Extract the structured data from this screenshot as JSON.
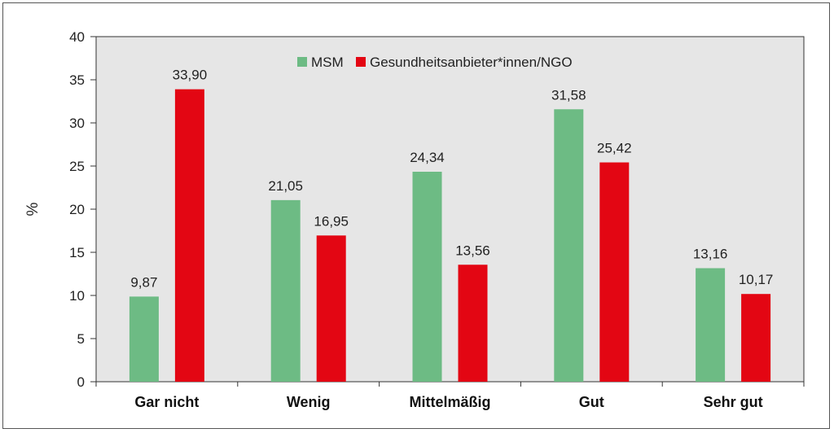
{
  "chart_data": {
    "type": "bar",
    "categories": [
      "Gar nicht",
      "Wenig",
      "Mittelmäßig",
      "Gut",
      "Sehr gut"
    ],
    "series": [
      {
        "name": "MSM",
        "values": [
          9.87,
          21.05,
          24.34,
          31.58,
          13.16
        ],
        "labels": [
          "9,87",
          "21,05",
          "24,34",
          "31,58",
          "13,16"
        ],
        "color": "#6dbb84"
      },
      {
        "name": "Gesundheitsanbieter*innen/NGO",
        "values": [
          33.9,
          16.95,
          13.56,
          25.42,
          10.17
        ],
        "labels": [
          "33,90",
          "16,95",
          "13,56",
          "25,42",
          "10,17"
        ],
        "color": "#e30613"
      }
    ],
    "ylabel": "%",
    "ylim": [
      0,
      40
    ],
    "yticks": [
      "0",
      "5",
      "10",
      "15",
      "20",
      "25",
      "30",
      "35",
      "40"
    ],
    "legend": "top-center",
    "grid": false,
    "plot_background": "#e6e6e6"
  }
}
